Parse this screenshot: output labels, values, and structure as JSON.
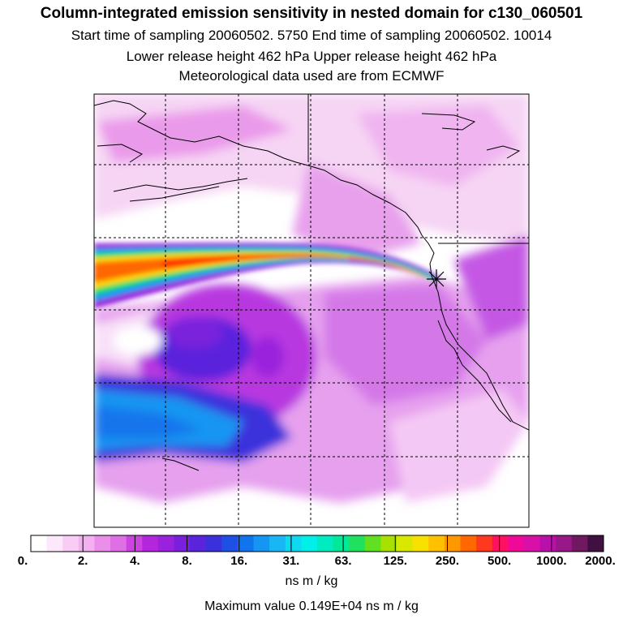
{
  "title": "Column-integrated emission sensitivity in nested domain for c130_060501",
  "subtitle_line1": "Start time of sampling 20060502.  5750     End time of sampling 20060502. 10014",
  "subtitle_line2": "Lower release height  462 hPa        Upper release height  462 hPa",
  "subtitle_line3": "Meteorological data used are from ECMWF",
  "colorbar": {
    "tick_labels": [
      "0.",
      "2.",
      "4.",
      "8.",
      "16.",
      "31.",
      "63.",
      "125.",
      "250.",
      "500.",
      "1000.",
      "2000."
    ],
    "units": "ns m / kg",
    "colors": [
      "#ffffff",
      "#fde8fb",
      "#f9ccf5",
      "#f4b0f0",
      "#e98ee9",
      "#de6fe4",
      "#cc44e0",
      "#b426dc",
      "#9a22dc",
      "#7a20dc",
      "#5a24dc",
      "#3a30dc",
      "#1e50e6",
      "#1074ec",
      "#1496f2",
      "#18b6f4",
      "#10d8f0",
      "#00f0e8",
      "#00ecc0",
      "#00e898",
      "#20e060",
      "#60e020",
      "#a8e000",
      "#d8e800",
      "#f8e000",
      "#ffc000",
      "#ff9800",
      "#ff6800",
      "#ff3820",
      "#ff1060",
      "#f00898",
      "#d810a8",
      "#b810a8",
      "#981888",
      "#701860",
      "#401040"
    ]
  },
  "max_value_text": "Maximum value  0.149E+04 ns m / kg",
  "map": {
    "release_marker": "star-icon",
    "plume_colors": [
      "#ff2a00",
      "#ffd000",
      "#00e8c0",
      "#1496f2"
    ]
  }
}
